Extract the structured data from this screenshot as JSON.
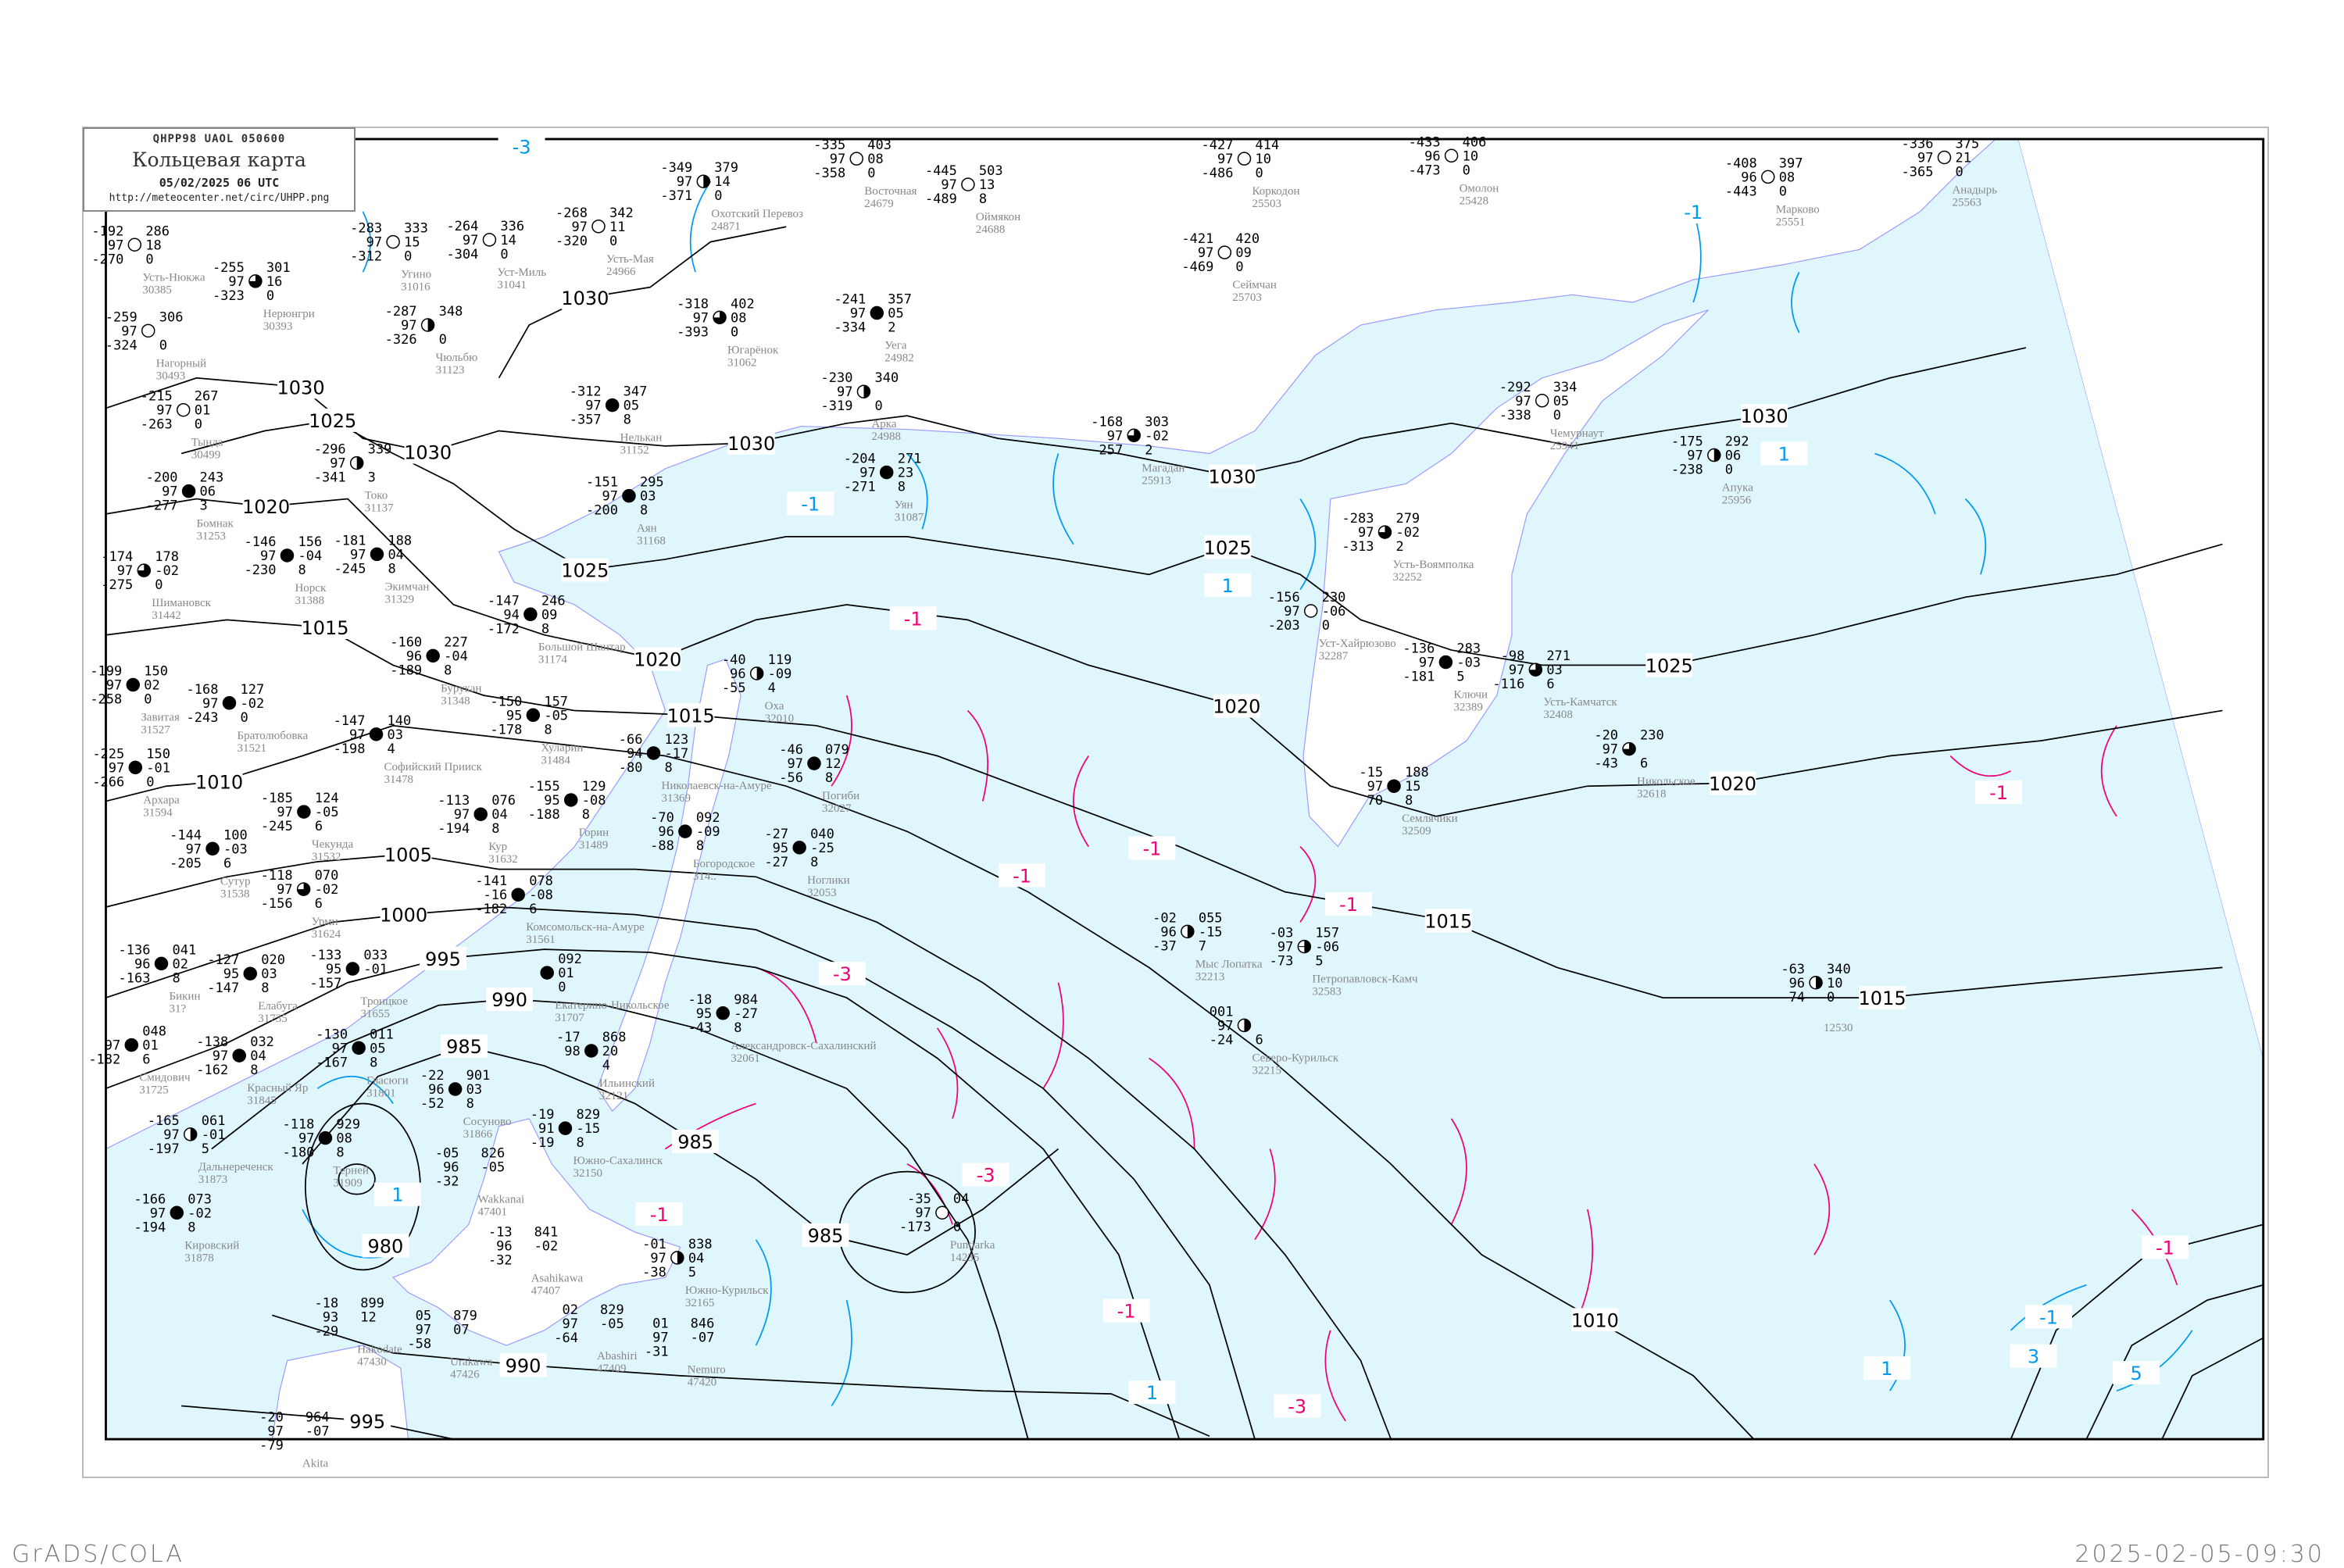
{
  "header": {
    "code": "QHPP98   UAOL   050600",
    "title": "Кольцевая карта",
    "datetime": "05/02/2025 06 UTC",
    "url": "http://meteocenter.net/circ/UHPP.png"
  },
  "footer": {
    "left": "GrADS/COLA",
    "right": "2025-02-05-09:30"
  },
  "colors": {
    "sea": "#e0f6fd",
    "land": "#ffffff",
    "isobar": "#000000",
    "isotherm_cold": "#0099ee",
    "isotherm_warm": "#ee0077",
    "coast": "#9999ff",
    "snow_marker": "#3399ff",
    "rain_marker": "#ff6666"
  },
  "isobar_labels": [
    "1030",
    "1030",
    "1030",
    "1030",
    "1030",
    "1030",
    "1025",
    "1025",
    "1025",
    "1025",
    "1020",
    "1020",
    "1020",
    "1020",
    "1015",
    "1015",
    "1015",
    "1015",
    "1010",
    "1010",
    "1005",
    "1000",
    "995",
    "995",
    "990",
    "990",
    "985",
    "985",
    "985",
    "980"
  ],
  "isotherm_labels": [
    "-3",
    "-1",
    "-1",
    "1",
    "1",
    "-1",
    "-1",
    "-1",
    "-1",
    "-1",
    "-3",
    "-3",
    "-1",
    "-1",
    "-3",
    "1",
    "1",
    "-1",
    "-1",
    "3",
    "1",
    "5"
  ],
  "stations": [
    {
      "name": "Усть-Нюкжа",
      "id": "30385",
      "tl": "-192",
      "ml": "97",
      "bl": "-270",
      "tr": "286",
      "mr": "18",
      "br": "0",
      "sky": "clear"
    },
    {
      "name": "Нерюнгри",
      "id": "30393",
      "tl": "-255",
      "ml": "97",
      "bl": "-323",
      "tr": "301",
      "mr": "16",
      "br": "0",
      "sky": "partial"
    },
    {
      "name": "Нагорный",
      "id": "30493",
      "tl": "-259",
      "ml": "97",
      "bl": "-324",
      "tr": "306",
      "mr": "",
      "br": "0",
      "sky": "clear"
    },
    {
      "name": "Тында",
      "id": "30499",
      "tl": "-215",
      "ml": "97",
      "bl": "-263",
      "tr": "267",
      "mr": "01",
      "br": "0",
      "sky": "clear"
    },
    {
      "name": "Угино",
      "id": "31016",
      "tl": "-283",
      "ml": "97",
      "bl": "-312",
      "tr": "333",
      "mr": "15",
      "br": "0",
      "sky": "clear"
    },
    {
      "name": "Чюльбю",
      "id": "31123",
      "tl": "-287",
      "ml": "97",
      "bl": "-326",
      "tr": "348",
      "mr": "",
      "br": "0",
      "sky": "half"
    },
    {
      "name": "Токо",
      "id": "31137",
      "tl": "-296",
      "ml": "97",
      "bl": "-341",
      "tr": "339",
      "mr": "",
      "br": "3",
      "sky": "half"
    },
    {
      "name": "Бомнак",
      "id": "31253",
      "tl": "-200",
      "ml": "97",
      "bl": "-277",
      "tr": "243",
      "mr": "06",
      "br": "3",
      "sky": "overcast"
    },
    {
      "name": "Нелькан",
      "id": "31152",
      "tl": "-312",
      "ml": "97",
      "bl": "-357",
      "tr": "347",
      "mr": "05",
      "br": "8",
      "sky": "overcast"
    },
    {
      "name": "Усть-Мая",
      "id": "24966",
      "tl": "-268",
      "ml": "97",
      "bl": "-320",
      "tr": "342",
      "mr": "11",
      "br": "0",
      "sky": "clear"
    },
    {
      "name": "Уст-Миль",
      "id": "31041",
      "tl": "-264",
      "ml": "97",
      "bl": "-304",
      "tr": "336",
      "mr": "14",
      "br": "0",
      "sky": "clear"
    },
    {
      "name": "Охотский Перевоз",
      "id": "24871",
      "tl": "-349",
      "ml": "97",
      "bl": "-371",
      "tr": "379",
      "mr": "14",
      "br": "0",
      "sky": "half"
    },
    {
      "name": "Восточная",
      "id": "24679",
      "tl": "-335",
      "ml": "97",
      "bl": "-358",
      "tr": "403",
      "mr": "08",
      "br": "0",
      "sky": "clear"
    },
    {
      "name": "Оймякон",
      "id": "24688",
      "tl": "-445",
      "ml": "97",
      "bl": "-489",
      "tr": "503",
      "mr": "13",
      "br": "8",
      "sky": "clear"
    },
    {
      "name": "Югарёнок",
      "id": "31062",
      "tl": "-318",
      "ml": "97",
      "bl": "-393",
      "tr": "402",
      "mr": "08",
      "br": "0",
      "sky": "partial"
    },
    {
      "name": "Уега",
      "id": "24982",
      "tl": "-241",
      "ml": "97",
      "bl": "-334",
      "tr": "357",
      "mr": "05",
      "br": "2",
      "sky": "overcast"
    },
    {
      "name": "Арка",
      "id": "24988",
      "tl": "-230",
      "ml": "97",
      "bl": "-319",
      "tr": "340",
      "mr": "",
      "br": "0",
      "sky": "half"
    },
    {
      "name": "Уян",
      "id": "31087",
      "tl": "-204",
      "ml": "97",
      "bl": "-271",
      "tr": "271",
      "mr": "23",
      "br": "8",
      "sky": "overcast"
    },
    {
      "name": "Коркодон",
      "id": "25503",
      "tl": "-427",
      "ml": "97",
      "bl": "-486",
      "tr": "414",
      "mr": "10",
      "br": "0",
      "sky": "clear"
    },
    {
      "name": "Сеймчан",
      "id": "25703",
      "tl": "-421",
      "ml": "97",
      "bl": "-469",
      "tr": "420",
      "mr": "09",
      "br": "0",
      "sky": "clear"
    },
    {
      "name": "Магадан",
      "id": "25913",
      "tl": "-168",
      "ml": "97",
      "bl": "-257",
      "tr": "303",
      "mr": "-02",
      "br": "2",
      "sky": "partial"
    },
    {
      "name": "Омолон",
      "id": "25428",
      "tl": "-433",
      "ml": "96",
      "bl": "-473",
      "tr": "406",
      "mr": "10",
      "br": "0",
      "sky": "clear"
    },
    {
      "name": "Марково",
      "id": "25551",
      "tl": "-408",
      "ml": "96",
      "bl": "-443",
      "tr": "397",
      "mr": "08",
      "br": "0",
      "sky": "clear"
    },
    {
      "name": "Анадырь",
      "id": "25563",
      "tl": "-336",
      "ml": "97",
      "bl": "-365",
      "tr": "375",
      "mr": "21",
      "br": "0",
      "sky": "clear"
    },
    {
      "name": "Чемурнаут",
      "id": "25941",
      "tl": "-292",
      "ml": "97",
      "bl": "-338",
      "tr": "334",
      "mr": "05",
      "br": "0",
      "sky": "clear"
    },
    {
      "name": "Апука",
      "id": "25956",
      "tl": "-175",
      "ml": "97",
      "bl": "-238",
      "tr": "292",
      "mr": "06",
      "br": "0",
      "sky": "half"
    },
    {
      "name": "Аян",
      "id": "31168",
      "tl": "-151",
      "ml": "97",
      "bl": "-200",
      "tr": "295",
      "mr": "03",
      "br": "8",
      "sky": "overcast"
    },
    {
      "name": "Большой Шантар",
      "id": "31174",
      "tl": "-147",
      "ml": "94",
      "bl": "-172",
      "tr": "246",
      "mr": "09",
      "br": "8",
      "sky": "overcast"
    },
    {
      "name": "Усть-Воямполка",
      "id": "32252",
      "tl": "-283",
      "ml": "97",
      "bl": "-313",
      "tr": "279",
      "mr": "-02",
      "br": "2",
      "sky": "partial"
    },
    {
      "name": "Уст-Хайрюзово",
      "id": "32287",
      "tl": "-156",
      "ml": "97",
      "bl": "-203",
      "tr": "230",
      "mr": "-06",
      "br": "0",
      "sky": "clear"
    },
    {
      "name": "Ключи",
      "id": "32389",
      "tl": "-136",
      "ml": "97",
      "bl": "-181",
      "tr": "283",
      "mr": "-03",
      "br": "5",
      "sky": "overcast"
    },
    {
      "name": "Усть-Камчатск",
      "id": "32408",
      "tl": "-98",
      "ml": "97",
      "bl": "-116",
      "tr": "271",
      "mr": "03",
      "br": "6",
      "sky": "partial"
    },
    {
      "name": "Никольское",
      "id": "32618",
      "tl": "-20",
      "ml": "97",
      "bl": "-43",
      "tr": "230",
      "mr": "",
      "br": "6",
      "sky": "partial"
    },
    {
      "name": "Семлячики",
      "id": "32509",
      "tl": "-15",
      "ml": "97",
      "bl": "70",
      "tr": "188",
      "mr": "15",
      "br": "8",
      "sky": "overcast"
    },
    {
      "name": "Петропавловск-Камч",
      "id": "32583",
      "tl": "-03",
      "ml": "97",
      "bl": "-73",
      "tr": "157",
      "mr": "-06",
      "br": "5",
      "sky": "cross"
    },
    {
      "name": "Мыс Лопатка",
      "id": "32213",
      "tl": "-02",
      "ml": "96",
      "bl": "-37",
      "tr": "055",
      "mr": "-15",
      "br": "7",
      "sky": "half"
    },
    {
      "name": "Северо-Курильск",
      "id": "32215",
      "tl": "001",
      "ml": "97",
      "bl": "-24",
      "tr": "",
      "mr": "",
      "br": "6",
      "sky": "half"
    },
    {
      "name": "",
      "id": "12530",
      "tl": "-63",
      "ml": "96",
      "bl": "-74",
      "tr": "340",
      "mr": "10",
      "br": "0",
      "sky": "half"
    },
    {
      "name": "Шимановск",
      "id": "31442",
      "tl": "-174",
      "ml": "97",
      "bl": "-275",
      "tr": "178",
      "mr": "-02",
      "br": "0",
      "sky": "partial"
    },
    {
      "name": "Норск",
      "id": "31388",
      "tl": "-146",
      "ml": "97",
      "bl": "-230",
      "tr": "156",
      "mr": "-04",
      "br": "8",
      "sky": "overcast"
    },
    {
      "name": "Экимчан",
      "id": "31329",
      "tl": "-181",
      "ml": "97",
      "bl": "-245",
      "tr": "188",
      "mr": "04",
      "br": "8",
      "sky": "overcast"
    },
    {
      "name": "Бурукан",
      "id": "31348",
      "tl": "-160",
      "ml": "96",
      "bl": "-189",
      "tr": "227",
      "mr": "-04",
      "br": "8",
      "sky": "overcast"
    },
    {
      "name": "Софийский Прииск",
      "id": "31478",
      "tl": "-147",
      "ml": "97",
      "bl": "-198",
      "tr": "140",
      "mr": "03",
      "br": "4",
      "sky": "overcast"
    },
    {
      "name": "Завитая",
      "id": "31527",
      "tl": "-199",
      "ml": "97",
      "bl": "-258",
      "tr": "150",
      "mr": "02",
      "br": "0",
      "sky": "overcast"
    },
    {
      "name": "Братолюбовка",
      "id": "31521",
      "tl": "-168",
      "ml": "97",
      "bl": "-243",
      "tr": "127",
      "mr": "-02",
      "br": "0",
      "sky": "overcast"
    },
    {
      "name": "Чекунда",
      "id": "31532",
      "tl": "-185",
      "ml": "97",
      "bl": "-245",
      "tr": "124",
      "mr": "-05",
      "br": "6",
      "sky": "overcast"
    },
    {
      "name": "Архара",
      "id": "31594",
      "tl": "-225",
      "ml": "97",
      "bl": "-266",
      "tr": "150",
      "mr": "-01",
      "br": "0",
      "sky": "overcast"
    },
    {
      "name": "Сутур",
      "id": "31538",
      "tl": "-144",
      "ml": "97",
      "bl": "-205",
      "tr": "100",
      "mr": "-03",
      "br": "6",
      "sky": "overcast"
    },
    {
      "name": "Урми",
      "id": "31624",
      "tl": "-118",
      "ml": "97",
      "bl": "-156",
      "tr": "070",
      "mr": "-02",
      "br": "6",
      "sky": "partial"
    },
    {
      "name": "Кур",
      "id": "31632",
      "tl": "-113",
      "ml": "97",
      "bl": "-194",
      "tr": "076",
      "mr": "04",
      "br": "8",
      "sky": "overcast"
    },
    {
      "name": "Хуларин",
      "id": "31484",
      "tl": "-150",
      "ml": "95",
      "bl": "-178",
      "tr": "157",
      "mr": "-05",
      "br": "8",
      "sky": "overcast"
    },
    {
      "name": "Горин",
      "id": "31489",
      "tl": "-155",
      "ml": "95",
      "bl": "-188",
      "tr": "129",
      "mr": "-08",
      "br": "8",
      "sky": "overcast"
    },
    {
      "name": "Комсомольск-на-Амуре",
      "id": "31561",
      "tl": "-141",
      "ml": "-16",
      "bl": "-182",
      "tr": "078",
      "mr": "-08",
      "br": "6",
      "sky": "overcast"
    },
    {
      "name": "Троицкое",
      "id": "31655",
      "tl": "-133",
      "ml": "95",
      "bl": "-157",
      "tr": "033",
      "mr": "-01",
      "br": "",
      "sky": "overcast"
    },
    {
      "name": "Елабуга",
      "id": "31735",
      "tl": "-127",
      "ml": "95",
      "bl": "-147",
      "tr": "020",
      "mr": "03",
      "br": "8",
      "sky": "overcast"
    },
    {
      "name": "Гвасюги",
      "id": "31801",
      "tl": "-130",
      "ml": "97",
      "bl": "-167",
      "tr": "011",
      "mr": "05",
      "br": "8",
      "sky": "overcast"
    },
    {
      "name": "Бикин",
      "id": "31?",
      "tl": "-136",
      "ml": "96",
      "bl": "-163",
      "tr": "041",
      "mr": "02",
      "br": "8",
      "sky": "overcast"
    },
    {
      "name": "Красный Яр",
      "id": "31845",
      "tl": "-138",
      "ml": "97",
      "bl": "-162",
      "tr": "032",
      "mr": "04",
      "br": "8",
      "sky": "overcast"
    },
    {
      "name": "Дальнереченск",
      "id": "31873",
      "tl": "-165",
      "ml": "97",
      "bl": "-197",
      "tr": "061",
      "mr": "-01",
      "br": "5",
      "sky": "half"
    },
    {
      "name": "Кировский",
      "id": "31878",
      "tl": "-166",
      "ml": "97",
      "bl": "-194",
      "tr": "073",
      "mr": "-02",
      "br": "8",
      "sky": "overcast"
    },
    {
      "name": "Сосуново",
      "id": "31866",
      "tl": "-22",
      "ml": "96",
      "bl": "-52",
      "tr": "901",
      "mr": "03",
      "br": "8",
      "sky": "overcast"
    },
    {
      "name": "Екатерино-Никольское",
      "id": "31707",
      "tl": "",
      "ml": "",
      "bl": "",
      "tr": "092",
      "mr": "01",
      "br": "0",
      "sky": "overcast"
    },
    {
      "name": "Смидович",
      "id": "31725",
      "tl": "",
      "ml": "97",
      "bl": "-182",
      "tr": "048",
      "mr": "01",
      "br": "6",
      "sky": "overcast"
    },
    {
      "name": "Николаевск-на-Амуре",
      "id": "31369",
      "tl": "-66",
      "ml": "94",
      "bl": "-80",
      "tr": "123",
      "mr": "-17",
      "br": "8",
      "sky": "overcast"
    },
    {
      "name": "Оха",
      "id": "32010",
      "tl": "-40",
      "ml": "96",
      "bl": "-55",
      "tr": "119",
      "mr": "-09",
      "br": "4",
      "sky": "half"
    },
    {
      "name": "Богородское",
      "id": "314..",
      "tl": "-70",
      "ml": "96",
      "bl": "-88",
      "tr": "092",
      "mr": "-09",
      "br": "8",
      "sky": "overcast"
    },
    {
      "name": "Погиби",
      "id": "32027",
      "tl": "-46",
      "ml": "97",
      "bl": "-56",
      "tr": "079",
      "mr": "12",
      "br": "8",
      "sky": "overcast"
    },
    {
      "name": "Ноглики",
      "id": "32053",
      "tl": "-27",
      "ml": "95",
      "bl": "-27",
      "tr": "040",
      "mr": "-25",
      "br": "8",
      "sky": "overcast"
    },
    {
      "name": "Александровск-Сахалинский",
      "id": "32061",
      "tl": "-18",
      "ml": "95",
      "bl": "-43",
      "tr": "984",
      "mr": "-27",
      "br": "8",
      "sky": "overcast"
    },
    {
      "name": "Ильинский",
      "id": "32121",
      "tl": "-17",
      "ml": "98",
      "bl": "",
      "tr": "868",
      "mr": "20",
      "br": "4",
      "sky": "overcast"
    },
    {
      "name": "Южно-Сахалинск",
      "id": "32150",
      "tl": "-19",
      "ml": "91",
      "bl": "-19",
      "tr": "829",
      "mr": "-15",
      "br": "8",
      "sky": "overcast"
    },
    {
      "name": "Терней",
      "id": "31909",
      "tl": "-118",
      "ml": "97",
      "bl": "-180",
      "tr": "929",
      "mr": "08",
      "br": "8",
      "sky": "overcast"
    },
    {
      "name": "Южно-Курильск",
      "id": "32165",
      "tl": "-01",
      "ml": "97",
      "bl": "-38",
      "tr": "838",
      "mr": "04",
      "br": "5",
      "sky": "half"
    },
    {
      "name": "Wakkanai",
      "id": "47401",
      "tl": "-05",
      "ml": "96",
      "bl": "-32",
      "tr": "826",
      "mr": "-05",
      "br": "",
      "sky": "none"
    },
    {
      "name": "Asahikawa",
      "id": "47407",
      "tl": "-13",
      "ml": "96",
      "bl": "-32",
      "tr": "841",
      "mr": "-02",
      "br": "",
      "sky": "none"
    },
    {
      "name": "Abashiri",
      "id": "47409",
      "tl": "02",
      "ml": "97",
      "bl": "-64",
      "tr": "829",
      "mr": "-05",
      "br": "",
      "sky": "none"
    },
    {
      "name": "Nemuro",
      "id": "47420",
      "tl": "01",
      "ml": "97",
      "bl": "-31",
      "tr": "846",
      "mr": "-07",
      "br": "",
      "sky": "none"
    },
    {
      "name": "Urakawa",
      "id": "47426",
      "tl": "05",
      "ml": "97",
      "bl": "-58",
      "tr": "879",
      "mr": "07",
      "br": "",
      "sky": "none"
    },
    {
      "name": "Hakodate",
      "id": "47430",
      "tl": "-18",
      "ml": "93",
      "bl": "-29",
      "tr": "899",
      "mr": "12",
      "br": "",
      "sky": "none"
    },
    {
      "name": "Akita",
      "id": "",
      "tl": "-20",
      "ml": "97",
      "bl": "-79",
      "tr": "964",
      "mr": "-07",
      "br": "",
      "sky": "none"
    },
    {
      "name": "Puntjarka",
      "id": "14235",
      "tl": "-35",
      "ml": "97",
      "bl": "-173",
      "tr": "04",
      "mr": "",
      "br": "0",
      "sky": "clear"
    }
  ]
}
